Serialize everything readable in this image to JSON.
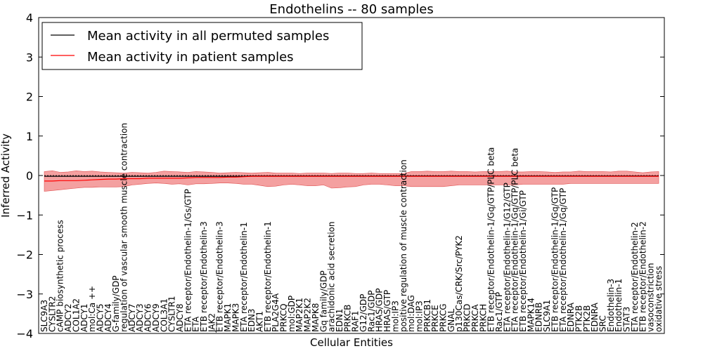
{
  "chart_data": {
    "type": "line",
    "title": "Endothelins -- 80 samples",
    "xlabel": "Cellular Entities",
    "ylabel": "Inferred Activity",
    "ylim": [
      -4,
      4
    ],
    "yticks": [
      -4,
      -3,
      -2,
      -1,
      0,
      1,
      2,
      3,
      4
    ],
    "ytick_labels": [
      "−4",
      "−3",
      "−2",
      "−1",
      "0",
      "1",
      "2",
      "3",
      "4"
    ],
    "grid": false,
    "legend_position": "top-left",
    "reference_line": 0,
    "categories": [
      "SLC9A3",
      "CYSLTR2",
      "cAMP biosynthetic process",
      "ADCY2",
      "COL1A2",
      "ADCY1",
      "mol:Ca ++",
      "ADCY5",
      "ADCY4",
      "G-family/GDP",
      "regulation of vascular smooth muscle contraction",
      "ADCY7",
      "ADCY3",
      "ADCY6",
      "ADCY9",
      "COL3A1",
      "CYSLTR1",
      "ADCY8",
      "ETA receptor/Endothelin-1/Gs/GTP",
      "ETA",
      "ETB receptor/Endothelin-3",
      "JAK2",
      "ETB receptor/Endothelin-3",
      "MAPK1",
      "MAPK3",
      "ETA receptor/Endothelin-1",
      "EDN3",
      "AKT1",
      "ETB receptor/Endothelin-1",
      "PLA2G4A",
      "PRKCQ",
      "mol:GDP",
      "MAP2K1",
      "MAP2K2",
      "MAPK8",
      "Gq family/GDP",
      "arachidonic acid secretion",
      "EDN1",
      "PRKCB",
      "RAF1",
      "G12/GDP",
      "Rac1/GDP",
      "HRAS/GDP",
      "HRAS/GTP",
      "mol:IP3",
      "positive regulation of muscle contraction",
      "mol:DAG",
      "mol:IP3",
      "PRKCB1",
      "PRKCE",
      "PRKCG",
      "GNAL",
      "p130Cas/CRK/Src/PYK2",
      "PRKCD",
      "PRKCA",
      "PRKCH",
      "ETB receptor/Endothelin-1/Gq/GTP/PLC beta",
      "Rac1/GTP",
      "ETA receptor/Endothelin-1/G12/GTP",
      "ETA receptor/Endothelin-1/Gq/GTP/PLC beta",
      "ETB receptor/Endothelin-1/Gi/GTP",
      "MAPK14",
      "EDNRB",
      "SLC9A1",
      "ETB receptor/Endothelin-1/Gq/GTP",
      "ETA receptor/Endothelin-1/Gq/GTP",
      "EDNRA",
      "PTK2B",
      "PTK2B",
      "EDNRA",
      "SRC",
      "Endothelin-3",
      "Endothelin-1",
      "STAT3",
      "ETA receptor/Endothelin-2",
      "ETB receptor/Endothelin-2",
      "vasoconstriction",
      "oxidative stress"
    ],
    "series": [
      {
        "name": "Mean activity in all permuted samples",
        "color": "#000000",
        "values": [
          -0.02,
          -0.02,
          -0.02,
          -0.02,
          -0.02,
          -0.02,
          -0.02,
          -0.02,
          -0.02,
          -0.02,
          -0.02,
          -0.02,
          -0.02,
          -0.02,
          -0.02,
          -0.02,
          -0.02,
          -0.02,
          -0.02,
          -0.02,
          -0.02,
          -0.02,
          -0.02,
          -0.02,
          -0.02,
          -0.02,
          -0.01,
          -0.01,
          -0.01,
          -0.01,
          -0.01,
          -0.01,
          -0.01,
          -0.01,
          -0.01,
          -0.01,
          -0.01,
          -0.01,
          -0.01,
          -0.01,
          -0.01,
          -0.01,
          -0.01,
          -0.01,
          -0.01,
          -0.01,
          -0.01,
          -0.01,
          -0.01,
          -0.01,
          -0.01,
          -0.01,
          -0.01,
          -0.01,
          -0.01,
          -0.01,
          -0.01,
          -0.01,
          -0.01,
          -0.01,
          -0.01,
          -0.01,
          -0.01,
          -0.01,
          -0.01,
          -0.01,
          -0.01,
          -0.01,
          -0.01,
          -0.01,
          -0.01,
          -0.01,
          -0.01,
          -0.01,
          -0.01,
          -0.01,
          -0.01,
          -0.01
        ]
      },
      {
        "name": "Mean activity in patient samples",
        "color": "#ff0000",
        "band_color": "#f08080",
        "values": [
          -0.14,
          -0.14,
          -0.13,
          -0.13,
          -0.13,
          -0.12,
          -0.11,
          -0.1,
          -0.09,
          -0.09,
          -0.08,
          -0.08,
          -0.08,
          -0.07,
          -0.07,
          -0.07,
          -0.07,
          -0.07,
          -0.06,
          -0.05,
          -0.05,
          -0.05,
          -0.05,
          -0.04,
          -0.04,
          -0.03,
          -0.02,
          -0.02,
          -0.02,
          -0.02,
          -0.02,
          -0.02,
          -0.02,
          -0.02,
          -0.02,
          -0.02,
          -0.02,
          -0.02,
          -0.02,
          -0.02,
          -0.02,
          -0.02,
          -0.02,
          -0.02,
          -0.02,
          -0.02,
          -0.02,
          -0.02,
          -0.02,
          -0.02,
          -0.02,
          -0.02,
          -0.02,
          -0.02,
          -0.02,
          -0.02,
          -0.02,
          -0.02,
          -0.02,
          -0.02,
          -0.02,
          -0.02,
          -0.02,
          -0.02,
          -0.02,
          -0.02,
          -0.02,
          -0.02,
          -0.02,
          -0.02,
          -0.02,
          -0.02,
          -0.02,
          -0.02,
          -0.02,
          -0.02,
          -0.02,
          -0.02
        ],
        "upper": [
          0.1,
          0.12,
          0.08,
          0.09,
          0.12,
          0.1,
          0.11,
          0.09,
          0.08,
          0.07,
          0.06,
          0.08,
          0.07,
          0.06,
          0.08,
          0.11,
          0.1,
          0.09,
          0.08,
          0.1,
          0.09,
          0.08,
          0.06,
          0.07,
          0.08,
          0.07,
          0.06,
          0.07,
          0.08,
          0.06,
          0.06,
          0.06,
          0.05,
          0.06,
          0.06,
          0.06,
          0.05,
          0.06,
          0.06,
          0.05,
          0.05,
          0.06,
          0.05,
          0.05,
          0.05,
          0.05,
          0.1,
          0.1,
          0.11,
          0.1,
          0.1,
          0.11,
          0.1,
          0.1,
          0.09,
          0.1,
          0.1,
          0.1,
          0.11,
          0.09,
          0.09,
          0.1,
          0.1,
          0.09,
          0.08,
          0.09,
          0.09,
          0.11,
          0.1,
          0.1,
          0.1,
          0.09,
          0.11,
          0.11,
          0.09,
          0.07,
          0.09,
          0.1
        ],
        "lower": [
          -0.4,
          -0.38,
          -0.36,
          -0.34,
          -0.32,
          -0.3,
          -0.3,
          -0.29,
          -0.29,
          -0.29,
          -0.28,
          -0.24,
          -0.22,
          -0.2,
          -0.19,
          -0.2,
          -0.22,
          -0.21,
          -0.24,
          -0.21,
          -0.21,
          -0.2,
          -0.19,
          -0.19,
          -0.2,
          -0.22,
          -0.22,
          -0.25,
          -0.28,
          -0.27,
          -0.24,
          -0.22,
          -0.24,
          -0.26,
          -0.26,
          -0.24,
          -0.32,
          -0.31,
          -0.29,
          -0.28,
          -0.24,
          -0.22,
          -0.22,
          -0.24,
          -0.26,
          -0.26,
          -0.28,
          -0.28,
          -0.28,
          -0.28,
          -0.28,
          -0.26,
          -0.24,
          -0.24,
          -0.24,
          -0.24,
          -0.24,
          -0.24,
          -0.24,
          -0.24,
          -0.22,
          -0.22,
          -0.22,
          -0.22,
          -0.22,
          -0.22,
          -0.2,
          -0.2,
          -0.2,
          -0.2,
          -0.2,
          -0.2,
          -0.2,
          -0.2,
          -0.2,
          -0.2,
          -0.2,
          -0.2
        ]
      }
    ]
  }
}
